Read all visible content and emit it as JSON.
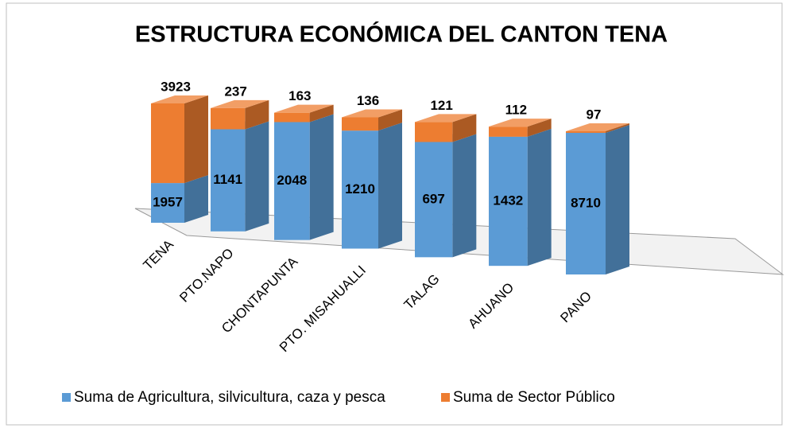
{
  "chart_data": {
    "type": "bar",
    "stacked": "percent",
    "title": "ESTRUCTURA ECONÓMICA DEL CANTON TENA",
    "categories": [
      "TENA",
      "PTO.NAPO",
      "CHONTAPUNTA",
      "PTO. MISAHUALLI",
      "TALAG",
      "AHUANO",
      "PANO"
    ],
    "series": [
      {
        "name": "Suma de Agricultura, silvicultura, caza y pesca",
        "color": "#5b9bd5",
        "values": [
          1957,
          1141,
          2048,
          1210,
          697,
          1432,
          8710
        ]
      },
      {
        "name": "Suma de Sector Público",
        "color": "#ed7d31",
        "values": [
          3923,
          237,
          163,
          136,
          121,
          112,
          97
        ]
      }
    ],
    "legend": "bottom"
  }
}
